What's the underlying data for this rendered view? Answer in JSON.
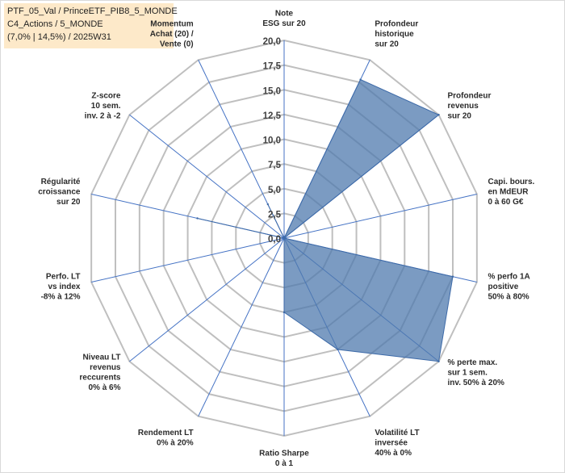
{
  "header": {
    "line1": "PTF_05_Val / PrinceETF_PIB8_5_MONDE",
    "line2": "C4_Actions / 5_MONDE",
    "line3": "(7,0% | 14,5%) / 2025W31"
  },
  "colors": {
    "grid": "#bfbfbf",
    "spoke": "#4472c4",
    "fill": "#4f7aae",
    "fill_opacity": 0.75,
    "outline": "#3d6aa8"
  },
  "chart_data": {
    "type": "radar",
    "title": "",
    "range": [
      0,
      20
    ],
    "tick_step": 2.5,
    "tick_labels": [
      "0,0",
      "2,5",
      "5,0",
      "7,5",
      "10,0",
      "12,5",
      "15,0",
      "17,5",
      "20,0"
    ],
    "axes": [
      {
        "label": [
          "Note",
          "ESG sur 20"
        ],
        "value": 0
      },
      {
        "label": [
          "Profondeur",
          "historique",
          "sur 20"
        ],
        "value": 17.8
      },
      {
        "label": [
          "Profondeur",
          "revenus",
          "sur 20"
        ],
        "value": 20
      },
      {
        "label": [
          "Capi. bours.",
          "en MdEUR",
          "0 à 60 G€"
        ],
        "value": 0
      },
      {
        "label": [
          "% perfo 1A",
          "positive",
          "50% à 80%"
        ],
        "value": 17.5
      },
      {
        "label": [
          "% perte max.",
          "sur 1 sem.",
          "inv. 50% à 20%"
        ],
        "value": 20
      },
      {
        "label": [
          "Volatilité LT",
          "inversée",
          "40% à 0%"
        ],
        "value": 12.5
      },
      {
        "label": [
          "Ratio Sharpe",
          "0 à 1"
        ],
        "value": 7.5
      },
      {
        "label": [
          "Rendement LT",
          "0% à 20%"
        ],
        "value": 0
      },
      {
        "label": [
          "Niveau LT",
          "revenus",
          "reccurents",
          "0% à 6%"
        ],
        "value": 0
      },
      {
        "label": [
          "Perfo. LT",
          "vs index",
          "-8% à 12%"
        ],
        "value": 0
      },
      {
        "label": [
          "Régularité",
          "croissance",
          "sur 20"
        ],
        "value": 9.0
      },
      {
        "label": [
          "Z-score",
          "10 sem.",
          "inv. 2 à -2"
        ],
        "value": 0
      },
      {
        "label": [
          "Momentum",
          "Achat (20) /",
          "Vente (0)"
        ],
        "value": 3.8
      }
    ]
  }
}
